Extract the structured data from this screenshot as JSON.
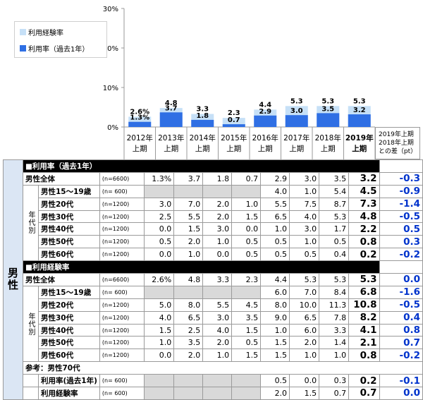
{
  "chart_data": {
    "type": "bar",
    "title": "",
    "categories": [
      "2012年上期",
      "2013年上期",
      "2014年上期",
      "2015年上期",
      "2016年上期",
      "2017年上期",
      "2018年上期",
      "2019年上期"
    ],
    "category_lines": [
      [
        "2012年",
        "上期"
      ],
      [
        "2013年",
        "上期"
      ],
      [
        "2014年",
        "上期"
      ],
      [
        "2015年",
        "上期"
      ],
      [
        "2016年",
        "上期"
      ],
      [
        "2017年",
        "上期"
      ],
      [
        "2018年",
        "上期"
      ],
      [
        "2019年",
        "上期"
      ]
    ],
    "series": [
      {
        "name": "利用経験率",
        "values": [
          2.6,
          4.8,
          3.3,
          2.3,
          4.4,
          5.3,
          5.3,
          5.3
        ],
        "labels": [
          "2.6%",
          "4.8",
          "3.3",
          "2.3",
          "4.4",
          "5.3",
          "5.3",
          "5.3"
        ],
        "color": "#c6e0f7"
      },
      {
        "name": "利用率（過去1年）",
        "values": [
          1.3,
          3.7,
          1.8,
          0.7,
          2.9,
          3.0,
          3.5,
          3.2
        ],
        "labels": [
          "1.3%",
          "3.7",
          "1.8",
          "0.7",
          "2.9",
          "3.0",
          "3.5",
          "3.2"
        ],
        "color": "#2f6fe4"
      }
    ],
    "ylim": [
      0,
      30
    ],
    "yticks": [
      "0%",
      "10%",
      "20%",
      "30%"
    ],
    "legend_position": "top-left",
    "grid": false
  },
  "legend": {
    "experience": "利用経験率",
    "usage": "利用率（過去1年）"
  },
  "diff_header": [
    "2019年上期",
    "2018年上期",
    "との差（pt）"
  ],
  "table": {
    "sex_label": "男性",
    "age_group_label": "年代別",
    "sections": [
      {
        "title": "■利用率（過去1年）",
        "rows": [
          {
            "label": "男性全体",
            "n": "(n=6600)",
            "values": [
              "1.3%",
              "3.7",
              "1.8",
              "0.7",
              "2.9",
              "3.0",
              "3.5",
              "3.2"
            ],
            "diff": "-0.3"
          },
          {
            "label": "男性15～19歳",
            "n": "(n= 600)",
            "values": [
              "",
              "",
              "",
              "",
              "4.0",
              "1.0",
              "5.4",
              "4.5"
            ],
            "diff": "-0.9"
          },
          {
            "label": "男性20代",
            "n": "(n=1200)",
            "values": [
              "3.0",
              "7.0",
              "2.0",
              "1.0",
              "5.5",
              "7.5",
              "8.7",
              "7.3"
            ],
            "diff": "-1.4"
          },
          {
            "label": "男性30代",
            "n": "(n=1200)",
            "values": [
              "2.5",
              "5.5",
              "2.0",
              "1.5",
              "6.5",
              "4.0",
              "5.3",
              "4.8"
            ],
            "diff": "-0.5"
          },
          {
            "label": "男性40代",
            "n": "(n=1200)",
            "values": [
              "0.0",
              "1.5",
              "3.0",
              "0.0",
              "1.0",
              "3.0",
              "1.7",
              "2.2"
            ],
            "diff": "0.5"
          },
          {
            "label": "男性50代",
            "n": "(n=1200)",
            "values": [
              "0.5",
              "2.0",
              "1.0",
              "0.5",
              "0.5",
              "1.0",
              "0.5",
              "0.8"
            ],
            "diff": "0.3"
          },
          {
            "label": "男性60代",
            "n": "(n=1200)",
            "values": [
              "0.0",
              "1.0",
              "0.0",
              "0.5",
              "0.5",
              "0.5",
              "0.4",
              "0.2"
            ],
            "diff": "-0.2"
          }
        ]
      },
      {
        "title": "■利用経験率",
        "rows": [
          {
            "label": "男性全体",
            "n": "(n=6600)",
            "values": [
              "2.6%",
              "4.8",
              "3.3",
              "2.3",
              "4.4",
              "5.3",
              "5.3",
              "5.3"
            ],
            "diff": "0.0"
          },
          {
            "label": "男性15～19歳",
            "n": "(n= 600)",
            "values": [
              "",
              "",
              "",
              "",
              "6.0",
              "7.0",
              "8.4",
              "6.8"
            ],
            "diff": "-1.6"
          },
          {
            "label": "男性20代",
            "n": "(n=1200)",
            "values": [
              "5.0",
              "8.0",
              "5.5",
              "4.5",
              "8.0",
              "10.0",
              "11.3",
              "10.8"
            ],
            "diff": "-0.5"
          },
          {
            "label": "男性30代",
            "n": "(n=1200)",
            "values": [
              "4.0",
              "6.5",
              "3.0",
              "3.5",
              "9.0",
              "6.5",
              "7.8",
              "8.2"
            ],
            "diff": "0.4"
          },
          {
            "label": "男性40代",
            "n": "(n=1200)",
            "values": [
              "1.5",
              "2.5",
              "4.0",
              "1.5",
              "1.0",
              "6.0",
              "3.3",
              "4.1"
            ],
            "diff": "0.8"
          },
          {
            "label": "男性50代",
            "n": "(n=1200)",
            "values": [
              "1.0",
              "3.5",
              "2.0",
              "0.5",
              "1.5",
              "2.0",
              "1.4",
              "2.1"
            ],
            "diff": "0.7"
          },
          {
            "label": "男性60代",
            "n": "(n=1200)",
            "values": [
              "0.0",
              "2.0",
              "1.0",
              "1.5",
              "1.5",
              "1.0",
              "1.0",
              "0.8"
            ],
            "diff": "-0.2"
          }
        ]
      }
    ],
    "reference": {
      "title": "参考：男性70代",
      "rows": [
        {
          "label": "利用率(過去1年)",
          "n": "(n= 600)",
          "values": [
            "",
            "",
            "",
            "",
            "0.5",
            "0.0",
            "0.3",
            "0.2"
          ],
          "diff": "-0.1"
        },
        {
          "label": "利用経験率",
          "n": "(n= 600)",
          "values": [
            "",
            "",
            "",
            "",
            "2.0",
            "1.5",
            "0.7",
            "0.7"
          ],
          "diff": "0.0"
        }
      ]
    }
  }
}
